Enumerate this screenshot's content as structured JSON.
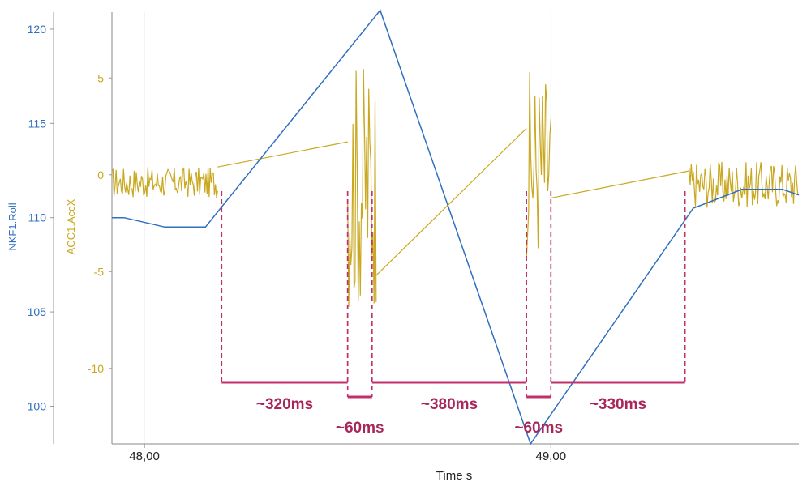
{
  "chart_data": {
    "type": "line",
    "xlabel": "Time s",
    "x_ticks": [
      "48,00",
      "49,00"
    ],
    "x_tick_values": [
      48.0,
      49.0
    ],
    "xlim": [
      47.92,
      49.61
    ],
    "y_left": {
      "label": "NKF1.Roll",
      "color": "#2f6fbf",
      "ticks": [
        "100",
        "105",
        "110",
        "115",
        "120"
      ],
      "tick_values": [
        100,
        105,
        110,
        115,
        120
      ],
      "ylim": [
        98.0,
        120.9
      ]
    },
    "y_right": {
      "label": "ACC1.AccX",
      "color": "#c9a820",
      "ticks": [
        "-10",
        "-5",
        "0",
        "5"
      ],
      "tick_values": [
        -10,
        -5,
        0,
        5
      ],
      "ylim": [
        -13.9,
        8.4
      ]
    },
    "grid": true,
    "series": [
      {
        "name": "NKF1.Roll",
        "axis": "left",
        "color": "#2f6fbf",
        "x": [
          47.92,
          47.95,
          48.05,
          48.15,
          48.58,
          48.95,
          49.35,
          49.47,
          49.57,
          49.61
        ],
        "y": [
          110.0,
          110.0,
          109.5,
          109.5,
          121.0,
          98.0,
          110.5,
          111.5,
          111.5,
          111.2
        ]
      },
      {
        "name": "ACC1.AccX",
        "axis": "right",
        "color": "#c9a820",
        "noisy_segments": [
          {
            "x_start": 47.92,
            "x_end": 48.18,
            "center": -0.4,
            "amplitude": 0.8
          },
          {
            "x_start": 48.5,
            "x_end": 48.57,
            "center": -0.5,
            "amplitude": 6.5
          },
          {
            "x_start": 48.94,
            "x_end": 49.0,
            "center": 0.5,
            "amplitude": 5.0
          },
          {
            "x_start": 49.34,
            "x_end": 49.61,
            "center": -0.5,
            "amplitude": 1.2
          }
        ],
        "gap_lines": [
          {
            "x": [
              48.18,
              48.5
            ],
            "y": [
              0.4,
              1.7
            ]
          },
          {
            "x": [
              48.57,
              48.94
            ],
            "y": [
              -5.2,
              2.4
            ]
          },
          {
            "x": [
              49.0,
              49.34
            ],
            "y": [
              -1.2,
              0.2
            ]
          }
        ]
      }
    ],
    "annotations": [
      {
        "label": "~320ms",
        "x_start": 48.19,
        "x_end": 48.5,
        "level": "upper"
      },
      {
        "label": "~60ms",
        "x_start": 48.5,
        "x_end": 48.56,
        "level": "lower"
      },
      {
        "label": "~380ms",
        "x_start": 48.56,
        "x_end": 48.94,
        "level": "upper"
      },
      {
        "label": "~60ms",
        "x_start": 48.94,
        "x_end": 49.0,
        "level": "lower"
      },
      {
        "label": "~330ms",
        "x_start": 49.0,
        "x_end": 49.33,
        "level": "upper"
      }
    ]
  }
}
